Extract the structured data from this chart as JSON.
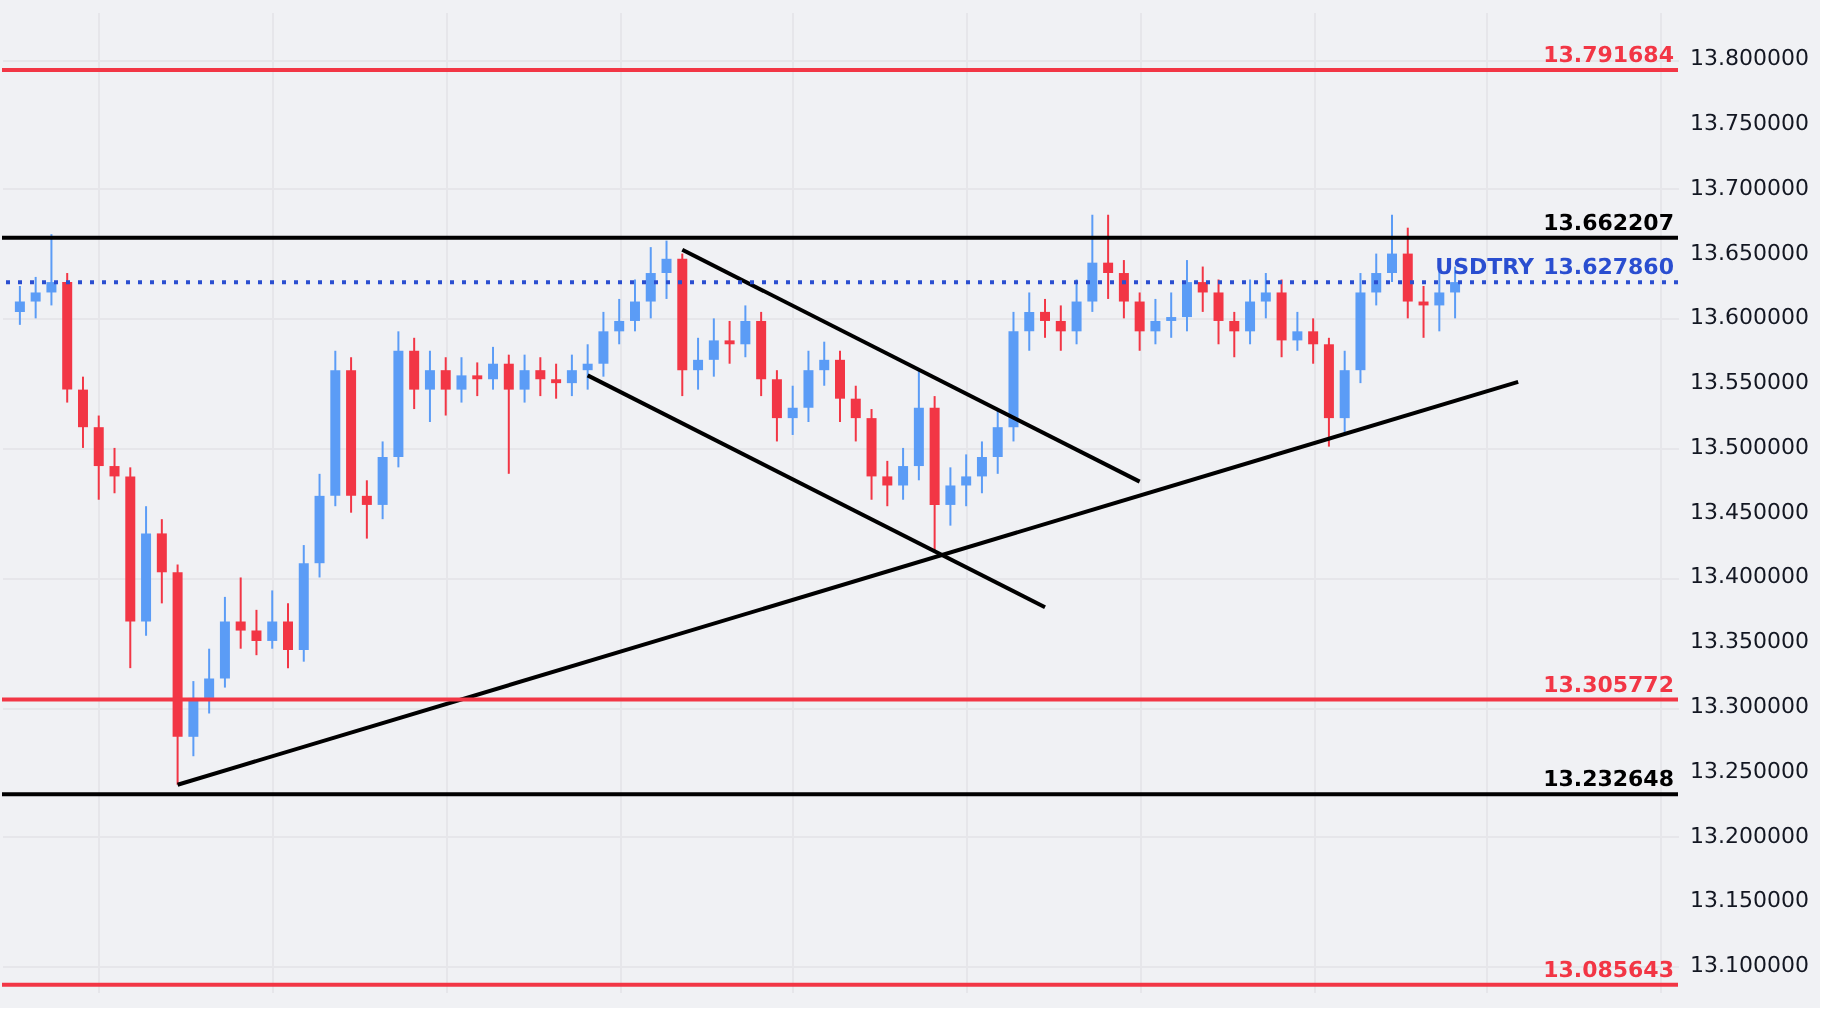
{
  "chart_data": {
    "type": "candlestick",
    "categories": [
      null,
      null,
      null,
      null,
      null,
      null,
      null,
      null,
      null,
      null,
      null,
      null,
      null,
      null,
      null,
      null,
      null,
      null,
      null,
      null,
      null,
      null,
      null,
      null,
      null,
      null,
      null,
      null,
      null,
      null,
      null,
      null,
      null,
      null,
      null,
      null,
      null,
      null,
      null,
      null,
      null,
      null,
      null,
      null,
      null,
      null,
      null,
      null,
      null,
      null,
      null,
      null,
      null,
      null,
      null,
      null,
      null,
      null,
      null,
      null,
      null,
      null,
      null,
      null,
      null,
      null,
      null,
      null,
      null,
      null,
      null,
      null,
      null,
      null,
      null,
      null,
      null,
      null,
      null,
      null,
      null,
      null,
      null,
      null,
      null,
      null,
      null,
      null,
      null,
      null,
      null,
      null,
      null,
      null,
      null,
      null,
      null,
      null,
      null,
      null,
      null,
      null,
      null,
      null,
      null
    ],
    "ohlc": [
      [
        13.605,
        13.625,
        13.595,
        13.613
      ],
      [
        13.613,
        13.632,
        13.6,
        13.62
      ],
      [
        13.62,
        13.665,
        13.61,
        13.628
      ],
      [
        13.628,
        13.635,
        13.535,
        13.545
      ],
      [
        13.545,
        13.555,
        13.5,
        13.516
      ],
      [
        13.516,
        13.525,
        13.46,
        13.486
      ],
      [
        13.486,
        13.5,
        13.465,
        13.478
      ],
      [
        13.478,
        13.485,
        13.33,
        13.366
      ],
      [
        13.366,
        13.455,
        13.355,
        13.434
      ],
      [
        13.434,
        13.445,
        13.38,
        13.404
      ],
      [
        13.404,
        13.41,
        13.24,
        13.277
      ],
      [
        13.277,
        13.32,
        13.262,
        13.307
      ],
      [
        13.307,
        13.345,
        13.295,
        13.322
      ],
      [
        13.322,
        13.385,
        13.315,
        13.366
      ],
      [
        13.366,
        13.4,
        13.345,
        13.359
      ],
      [
        13.359,
        13.375,
        13.34,
        13.351
      ],
      [
        13.351,
        13.39,
        13.345,
        13.366
      ],
      [
        13.366,
        13.38,
        13.33,
        13.344
      ],
      [
        13.344,
        13.425,
        13.335,
        13.411
      ],
      [
        13.411,
        13.48,
        13.4,
        13.463
      ],
      [
        13.463,
        13.575,
        13.455,
        13.56
      ],
      [
        13.56,
        13.57,
        13.45,
        13.463
      ],
      [
        13.463,
        13.475,
        13.43,
        13.456
      ],
      [
        13.456,
        13.505,
        13.445,
        13.493
      ],
      [
        13.493,
        13.59,
        13.485,
        13.575
      ],
      [
        13.575,
        13.585,
        13.53,
        13.545
      ],
      [
        13.545,
        13.575,
        13.52,
        13.56
      ],
      [
        13.56,
        13.57,
        13.525,
        13.545
      ],
      [
        13.545,
        13.57,
        13.535,
        13.556
      ],
      [
        13.556,
        13.566,
        13.54,
        13.553
      ],
      [
        13.553,
        13.578,
        13.545,
        13.565
      ],
      [
        13.565,
        13.572,
        13.48,
        13.545
      ],
      [
        13.545,
        13.572,
        13.535,
        13.56
      ],
      [
        13.56,
        13.57,
        13.54,
        13.553
      ],
      [
        13.553,
        13.565,
        13.538,
        13.55
      ],
      [
        13.55,
        13.572,
        13.54,
        13.56
      ],
      [
        13.56,
        13.58,
        13.545,
        13.565
      ],
      [
        13.565,
        13.605,
        13.555,
        13.59
      ],
      [
        13.59,
        13.615,
        13.58,
        13.598
      ],
      [
        13.598,
        13.63,
        13.59,
        13.613
      ],
      [
        13.613,
        13.655,
        13.6,
        13.635
      ],
      [
        13.635,
        13.66,
        13.615,
        13.646
      ],
      [
        13.646,
        13.65,
        13.54,
        13.56
      ],
      [
        13.56,
        13.585,
        13.545,
        13.568
      ],
      [
        13.568,
        13.6,
        13.555,
        13.583
      ],
      [
        13.583,
        13.598,
        13.565,
        13.58
      ],
      [
        13.58,
        13.61,
        13.57,
        13.598
      ],
      [
        13.598,
        13.605,
        13.54,
        13.553
      ],
      [
        13.553,
        13.56,
        13.505,
        13.523
      ],
      [
        13.523,
        13.548,
        13.51,
        13.531
      ],
      [
        13.531,
        13.575,
        13.52,
        13.56
      ],
      [
        13.56,
        13.582,
        13.548,
        13.568
      ],
      [
        13.568,
        13.575,
        13.52,
        13.538
      ],
      [
        13.538,
        13.548,
        13.505,
        13.523
      ],
      [
        13.523,
        13.53,
        13.46,
        13.478
      ],
      [
        13.478,
        13.49,
        13.455,
        13.471
      ],
      [
        13.471,
        13.5,
        13.46,
        13.486
      ],
      [
        13.486,
        13.56,
        13.475,
        13.531
      ],
      [
        13.531,
        13.54,
        13.42,
        13.456
      ],
      [
        13.456,
        13.485,
        13.44,
        13.471
      ],
      [
        13.471,
        13.495,
        13.455,
        13.478
      ],
      [
        13.478,
        13.505,
        13.465,
        13.493
      ],
      [
        13.493,
        13.53,
        13.48,
        13.516
      ],
      [
        13.516,
        13.605,
        13.505,
        13.59
      ],
      [
        13.59,
        13.62,
        13.575,
        13.605
      ],
      [
        13.605,
        13.615,
        13.585,
        13.598
      ],
      [
        13.598,
        13.61,
        13.575,
        13.59
      ],
      [
        13.59,
        13.63,
        13.58,
        13.613
      ],
      [
        13.613,
        13.68,
        13.605,
        13.643
      ],
      [
        13.643,
        13.68,
        13.615,
        13.635
      ],
      [
        13.635,
        13.645,
        13.6,
        13.613
      ],
      [
        13.613,
        13.62,
        13.575,
        13.59
      ],
      [
        13.59,
        13.615,
        13.58,
        13.598
      ],
      [
        13.598,
        13.62,
        13.585,
        13.601
      ],
      [
        13.601,
        13.645,
        13.59,
        13.628
      ],
      [
        13.628,
        13.64,
        13.605,
        13.62
      ],
      [
        13.62,
        13.63,
        13.58,
        13.598
      ],
      [
        13.598,
        13.605,
        13.57,
        13.59
      ],
      [
        13.59,
        13.63,
        13.58,
        13.613
      ],
      [
        13.613,
        13.635,
        13.6,
        13.62
      ],
      [
        13.62,
        13.63,
        13.57,
        13.583
      ],
      [
        13.583,
        13.605,
        13.575,
        13.59
      ],
      [
        13.59,
        13.6,
        13.565,
        13.58
      ],
      [
        13.58,
        13.585,
        13.501,
        13.523
      ],
      [
        13.523,
        13.575,
        13.51,
        13.56
      ],
      [
        13.56,
        13.635,
        13.55,
        13.62
      ],
      [
        13.62,
        13.65,
        13.61,
        13.635
      ],
      [
        13.635,
        13.68,
        13.628,
        13.65
      ],
      [
        13.65,
        13.67,
        13.6,
        13.613
      ],
      [
        13.613,
        13.625,
        13.585,
        13.61
      ],
      [
        13.61,
        13.64,
        13.59,
        13.62
      ],
      [
        13.62,
        13.64,
        13.6,
        13.628
      ],
      null,
      null,
      null,
      null,
      null,
      null,
      null,
      null,
      null,
      null,
      null,
      null,
      null
    ],
    "colors": [
      "#5b9cf6",
      "#5b9cf6",
      "#5b9cf6",
      "#f23645",
      "#f23645",
      "#f23645",
      "#f23645",
      "#f23645",
      "#5b9cf6",
      "#f23645",
      "#f23645",
      "#5b9cf6",
      "#5b9cf6",
      "#5b9cf6",
      "#f23645",
      "#f23645",
      "#5b9cf6",
      "#f23645",
      "#5b9cf6",
      "#5b9cf6",
      "#5b9cf6",
      "#f23645",
      "#f23645",
      "#5b9cf6",
      "#5b9cf6",
      "#f23645",
      "#5b9cf6",
      "#f23645",
      "#5b9cf6",
      "#f23645",
      "#5b9cf6",
      "#f23645",
      "#5b9cf6",
      "#f23645",
      "#f23645",
      "#5b9cf6",
      "#5b9cf6",
      "#5b9cf6",
      "#5b9cf6",
      "#5b9cf6",
      "#5b9cf6",
      "#5b9cf6",
      "#f23645",
      "#5b9cf6",
      "#5b9cf6",
      "#f23645",
      "#5b9cf6",
      "#f23645",
      "#f23645",
      "#5b9cf6",
      "#5b9cf6",
      "#5b9cf6",
      "#f23645",
      "#f23645",
      "#f23645",
      "#f23645",
      "#5b9cf6",
      "#5b9cf6",
      "#f23645",
      "#5b9cf6",
      "#5b9cf6",
      "#5b9cf6",
      "#5b9cf6",
      "#5b9cf6",
      "#5b9cf6",
      "#f23645",
      "#f23645",
      "#5b9cf6",
      "#5b9cf6",
      "#f23645",
      "#f23645",
      "#f23645",
      "#5b9cf6",
      "#5b9cf6",
      "#5b9cf6",
      "#f23645",
      "#f23645",
      "#f23645",
      "#5b9cf6",
      "#5b9cf6",
      "#f23645",
      "#5b9cf6",
      "#f23645",
      "#f23645",
      "#5b9cf6",
      "#5b9cf6",
      "#5b9cf6",
      "#5b9cf6",
      "#f23645",
      "#f23645",
      "#5b9cf6",
      "#5b9cf6",
      null,
      null,
      null,
      null,
      null,
      null,
      null,
      null,
      null,
      null,
      null,
      null,
      null
    ],
    "series": [
      {
        "type": "line",
        "color": "#000000",
        "values": [
          null,
          null,
          null,
          null,
          null,
          null,
          null,
          null,
          null,
          null,
          13.24,
          null,
          null,
          null,
          null,
          null,
          null,
          null,
          null,
          null,
          null,
          null,
          null,
          null,
          null,
          null,
          null,
          null,
          null,
          null,
          null,
          null,
          null,
          null,
          null,
          null,
          null,
          null,
          null,
          null,
          null,
          null,
          null,
          null,
          null,
          null,
          null,
          null,
          null,
          null,
          null,
          null,
          null,
          null,
          null,
          null,
          null,
          null,
          null,
          null,
          null,
          null,
          null,
          null,
          null,
          null,
          null,
          null,
          null,
          null,
          null,
          null,
          null,
          null,
          null,
          null,
          null,
          null,
          null,
          null,
          null,
          null,
          null,
          null,
          null,
          null,
          null,
          null,
          null,
          null,
          null,
          null,
          null,
          null,
          null,
          13.551,
          null,
          null,
          null,
          null,
          null,
          null,
          null,
          null,
          null
        ]
      },
      {
        "type": "line",
        "color": "#000000",
        "values": [
          null,
          null,
          null,
          null,
          null,
          null,
          null,
          null,
          null,
          null,
          null,
          null,
          null,
          null,
          null,
          null,
          null,
          null,
          null,
          null,
          null,
          null,
          null,
          null,
          null,
          null,
          null,
          null,
          null,
          null,
          null,
          null,
          null,
          null,
          null,
          null,
          null,
          null,
          null,
          null,
          null,
          null,
          13.653,
          null,
          null,
          null,
          null,
          null,
          null,
          null,
          null,
          null,
          null,
          null,
          null,
          null,
          null,
          null,
          null,
          null,
          null,
          null,
          null,
          null,
          null,
          null,
          null,
          null,
          null,
          null,
          null,
          13.474,
          null,
          null,
          null,
          null,
          null,
          null,
          null,
          null,
          null,
          null,
          null,
          null,
          null,
          null,
          null,
          null,
          null,
          null,
          null,
          null,
          null,
          null,
          null,
          null,
          null,
          null,
          null,
          null,
          null,
          null,
          null,
          null,
          null
        ]
      },
      {
        "type": "line",
        "color": "#000000",
        "values": [
          null,
          null,
          null,
          null,
          null,
          null,
          null,
          null,
          null,
          null,
          null,
          null,
          null,
          null,
          null,
          null,
          null,
          null,
          null,
          null,
          null,
          null,
          null,
          null,
          null,
          null,
          null,
          null,
          null,
          null,
          null,
          null,
          null,
          null,
          null,
          null,
          13.556,
          null,
          null,
          null,
          null,
          null,
          null,
          null,
          null,
          null,
          null,
          null,
          null,
          null,
          null,
          null,
          null,
          null,
          null,
          null,
          null,
          null,
          null,
          null,
          null,
          null,
          null,
          null,
          null,
          13.377,
          null,
          null,
          null,
          null,
          null,
          null,
          null,
          null,
          null,
          null,
          null,
          null,
          null,
          null,
          null,
          null,
          null,
          null,
          null,
          null,
          null,
          null,
          null,
          null,
          null,
          null,
          null,
          null,
          null,
          null,
          null,
          null,
          null,
          null,
          null,
          null,
          null,
          null,
          null
        ]
      }
    ],
    "ylim": [
      13.08,
      13.8365
    ],
    "yticks": [
      {
        "value": 13.1,
        "label": "13.100000"
      },
      {
        "value": 13.15,
        "label": "13.150000"
      },
      {
        "value": 13.2,
        "label": "13.200000"
      },
      {
        "value": 13.25,
        "label": "13.250000"
      },
      {
        "value": 13.3,
        "label": "13.300000"
      },
      {
        "value": 13.35,
        "label": "13.350000"
      },
      {
        "value": 13.4,
        "label": "13.400000"
      },
      {
        "value": 13.45,
        "label": "13.450000"
      },
      {
        "value": 13.5,
        "label": "13.500000"
      },
      {
        "value": 13.55,
        "label": "13.550000"
      },
      {
        "value": 13.6,
        "label": "13.600000"
      },
      {
        "value": 13.65,
        "label": "13.650000"
      },
      {
        "value": 13.7,
        "label": "13.700000"
      },
      {
        "value": 13.75,
        "label": "13.750000"
      },
      {
        "value": 13.8,
        "label": "13.800000"
      }
    ],
    "ref_lines": [
      {
        "axis": "y",
        "value": 13.791684,
        "label": "13.791684",
        "color": "#f23645"
      },
      {
        "axis": "y",
        "value": 13.662207,
        "label": "13.662207",
        "color": "#000000"
      },
      {
        "axis": "y",
        "value": 13.62786,
        "label": "13.627860",
        "color": "#2a4ed0",
        "line_style": "dotted"
      },
      {
        "axis": "y",
        "value": 13.305772,
        "label": "13.305772",
        "color": "#f23645"
      },
      {
        "axis": "y",
        "value": 13.232648,
        "label": "13.232648",
        "color": "#000000"
      },
      {
        "axis": "y",
        "value": 13.085643,
        "label": "13.085643",
        "color": "#f23645"
      }
    ],
    "annotations": [
      {
        "text": "USDTRY",
        "y": 13.62786
      }
    ],
    "grid": true
  }
}
